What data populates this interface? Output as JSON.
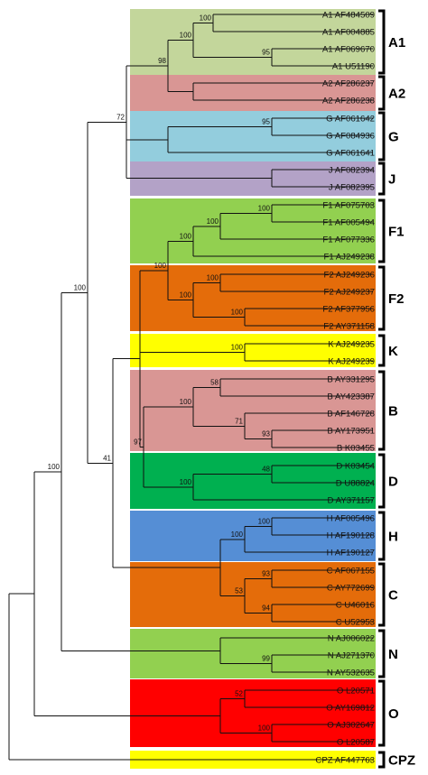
{
  "groups": [
    {
      "label": "A1",
      "color": "#c3d69b"
    },
    {
      "label": "A2",
      "color": "#d99694"
    },
    {
      "label": "G",
      "color": "#93cddd"
    },
    {
      "label": "J",
      "color": "#b3a2c7"
    },
    {
      "label": "F1",
      "color": "#92d050"
    },
    {
      "label": "F2",
      "color": "#e46c0a"
    },
    {
      "label": "K",
      "color": "#ffff00"
    },
    {
      "label": "B",
      "color": "#d99694"
    },
    {
      "label": "D",
      "color": "#00b050"
    },
    {
      "label": "H",
      "color": "#558ed5"
    },
    {
      "label": "C",
      "color": "#e46c0a"
    },
    {
      "label": "N",
      "color": "#92d050"
    },
    {
      "label": "O",
      "color": "#ff0000"
    },
    {
      "label": "CPZ",
      "color": "#ffff00"
    }
  ],
  "leaves": [
    "A1 AF484509",
    "A1 AF004885",
    "A1 AF069670",
    "A1 U51190",
    "A2 AF286237",
    "A2 AF286238",
    "G AF061642",
    "G AF084936",
    "G AF061641",
    "J AF082394",
    "J AF082395",
    "F1 AF075703",
    "F1 AF005494",
    "F1 AF077336",
    "F1 AJ249238",
    "F2 AJ249236",
    "F2 AJ249237",
    "F2 AF377956",
    "F2 AY371158",
    "K AJ249235",
    "K AJ249239",
    "B AY331295",
    "B AY423387",
    "B AF146728",
    "B AY173951",
    "B K03455",
    "D K03454",
    "D U88824",
    "D AY371157",
    "H AF005496",
    "H AF190128",
    "H AF190127",
    "C AF067155",
    "C AY772699",
    "C U46016",
    "C U52953",
    "N AJ006022",
    "N AJ271370",
    "N AY532635",
    "O L20571",
    "O AY169812",
    "O AJ302647",
    "O L20587",
    "CPZ AF447763"
  ],
  "support_values": [
    "100",
    "95",
    "100",
    "98",
    "95",
    "72",
    "100",
    "41",
    "100",
    "100",
    "100",
    "100",
    "100",
    "100",
    "100",
    "58",
    "71",
    "93",
    "97",
    "48",
    "100",
    "100",
    "100",
    "53",
    "93",
    "94",
    "41",
    "100",
    "100",
    "99",
    "100",
    "52",
    "100"
  ]
}
